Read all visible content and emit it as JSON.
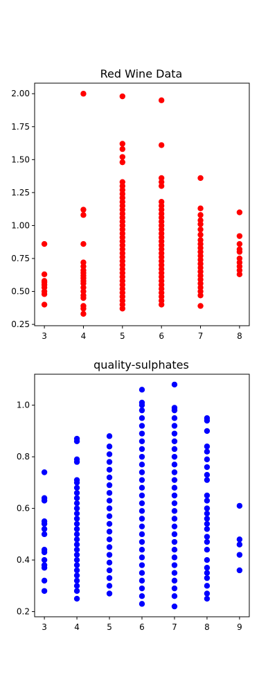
{
  "chart_data": [
    {
      "type": "scatter",
      "title": "Red Wine Data",
      "xlabel": "",
      "ylabel": "",
      "xlim": [
        2.75,
        8.25
      ],
      "ylim": [
        0.24,
        2.08
      ],
      "xticks": [
        3,
        4,
        5,
        6,
        7,
        8
      ],
      "xtick_labels": [
        "3",
        "4",
        "5",
        "6",
        "7",
        "8"
      ],
      "yticks": [
        0.25,
        0.5,
        0.75,
        1.0,
        1.25,
        1.5,
        1.75,
        2.0
      ],
      "ytick_labels": [
        "0.25",
        "0.50",
        "0.75",
        "1.00",
        "1.25",
        "1.50",
        "1.75",
        "2.00"
      ],
      "grid": false,
      "color": "#ff0000",
      "x_categories": [
        3,
        4,
        5,
        6,
        7,
        8
      ],
      "points": {
        "3": [
          0.4,
          0.48,
          0.5,
          0.53,
          0.55,
          0.57,
          0.58,
          0.63,
          0.86
        ],
        "4": [
          0.33,
          0.37,
          0.39,
          0.45,
          0.47,
          0.5,
          0.53,
          0.56,
          0.58,
          0.6,
          0.62,
          0.64,
          0.66,
          0.69,
          0.72,
          0.86,
          1.08,
          1.12,
          2.0
        ],
        "5": [
          0.37,
          0.4,
          0.43,
          0.46,
          0.49,
          0.52,
          0.55,
          0.58,
          0.61,
          0.64,
          0.67,
          0.7,
          0.73,
          0.76,
          0.79,
          0.82,
          0.85,
          0.88,
          0.91,
          0.94,
          0.97,
          1.0,
          1.03,
          1.06,
          1.09,
          1.12,
          1.15,
          1.18,
          1.21,
          1.24,
          1.27,
          1.3,
          1.33,
          1.48,
          1.52,
          1.58,
          1.62,
          1.98
        ],
        "6": [
          0.4,
          0.43,
          0.46,
          0.49,
          0.52,
          0.55,
          0.58,
          0.61,
          0.64,
          0.67,
          0.7,
          0.73,
          0.76,
          0.79,
          0.82,
          0.85,
          0.88,
          0.91,
          0.94,
          0.97,
          1.0,
          1.03,
          1.06,
          1.09,
          1.12,
          1.15,
          1.18,
          1.3,
          1.33,
          1.36,
          1.61,
          1.95
        ],
        "7": [
          0.39,
          0.47,
          0.5,
          0.53,
          0.56,
          0.59,
          0.62,
          0.65,
          0.68,
          0.71,
          0.74,
          0.77,
          0.8,
          0.83,
          0.86,
          0.89,
          0.93,
          0.97,
          1.01,
          1.04,
          1.08,
          1.13,
          1.36
        ],
        "8": [
          0.63,
          0.66,
          0.69,
          0.72,
          0.75,
          0.8,
          0.82,
          0.86,
          0.92,
          1.1
        ]
      }
    },
    {
      "type": "scatter",
      "title": "quality-sulphates",
      "xlabel": "",
      "ylabel": "",
      "xlim": [
        2.7,
        9.3
      ],
      "ylim": [
        0.18,
        1.12
      ],
      "xticks": [
        3,
        4,
        5,
        6,
        7,
        8,
        9
      ],
      "xtick_labels": [
        "3",
        "4",
        "5",
        "6",
        "7",
        "8",
        "9"
      ],
      "yticks": [
        0.2,
        0.4,
        0.6,
        0.8,
        1.0
      ],
      "ytick_labels": [
        "0.2",
        "0.4",
        "0.6",
        "0.8",
        "1.0"
      ],
      "grid": false,
      "color": "#0000ff",
      "x_categories": [
        3,
        4,
        5,
        6,
        7,
        8,
        9
      ],
      "points": {
        "3": [
          0.28,
          0.32,
          0.37,
          0.38,
          0.4,
          0.43,
          0.44,
          0.5,
          0.52,
          0.54,
          0.55,
          0.63,
          0.64,
          0.74
        ],
        "4": [
          0.25,
          0.28,
          0.3,
          0.32,
          0.34,
          0.36,
          0.38,
          0.4,
          0.42,
          0.44,
          0.46,
          0.48,
          0.5,
          0.52,
          0.54,
          0.56,
          0.58,
          0.6,
          0.62,
          0.64,
          0.66,
          0.68,
          0.7,
          0.71,
          0.78,
          0.79,
          0.86,
          0.87
        ],
        "5": [
          0.27,
          0.3,
          0.33,
          0.36,
          0.39,
          0.42,
          0.45,
          0.48,
          0.51,
          0.54,
          0.57,
          0.6,
          0.63,
          0.66,
          0.69,
          0.72,
          0.75,
          0.78,
          0.81,
          0.84,
          0.88
        ],
        "6": [
          0.23,
          0.26,
          0.29,
          0.32,
          0.35,
          0.38,
          0.41,
          0.44,
          0.47,
          0.5,
          0.53,
          0.56,
          0.59,
          0.62,
          0.65,
          0.68,
          0.71,
          0.74,
          0.77,
          0.8,
          0.83,
          0.86,
          0.89,
          0.92,
          0.95,
          0.98,
          1.0,
          1.01,
          1.06
        ],
        "7": [
          0.22,
          0.26,
          0.29,
          0.32,
          0.35,
          0.38,
          0.41,
          0.44,
          0.47,
          0.5,
          0.53,
          0.56,
          0.59,
          0.62,
          0.65,
          0.68,
          0.71,
          0.74,
          0.77,
          0.8,
          0.83,
          0.86,
          0.89,
          0.92,
          0.95,
          0.98,
          0.99,
          1.08
        ],
        "8": [
          0.25,
          0.27,
          0.3,
          0.33,
          0.35,
          0.37,
          0.4,
          0.44,
          0.47,
          0.49,
          0.52,
          0.54,
          0.56,
          0.58,
          0.6,
          0.63,
          0.65,
          0.71,
          0.73,
          0.76,
          0.79,
          0.82,
          0.84,
          0.9,
          0.94,
          0.95
        ],
        "9": [
          0.36,
          0.42,
          0.46,
          0.48,
          0.61
        ]
      }
    }
  ]
}
